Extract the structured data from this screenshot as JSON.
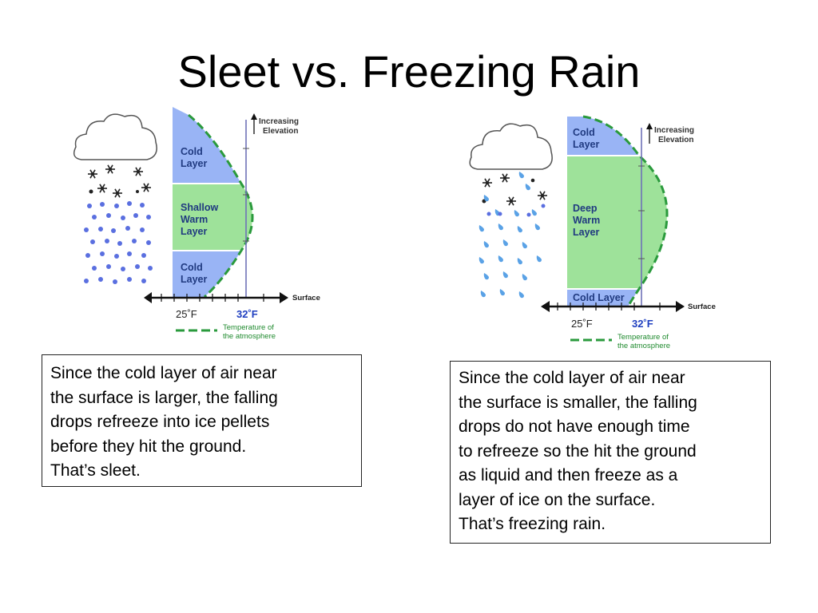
{
  "title": "Sleet vs. Freezing Rain",
  "colors": {
    "cold_layer": "#99b4f5",
    "warm_layer": "#9ee29a",
    "temperature_line": "#2a9a3c",
    "freezing_label": "#1f3fc0",
    "legend_text": "#1f8a2e",
    "layer_text": "#203a80",
    "pellet": "#5a6fe0",
    "raindrop": "#5aa2e6"
  },
  "sleet_diagram": {
    "top_layer": [
      "Cold",
      "Layer"
    ],
    "middle_layer": [
      "Shallow",
      "Warm",
      "Layer"
    ],
    "bottom_layer": [
      "Cold",
      "Layer"
    ],
    "elevation_label": [
      "Increasing",
      "Elevation"
    ],
    "surface_label": "Surface",
    "temp_cold": "25˚F",
    "temp_freezing": "32˚F",
    "legend_label": [
      "Temperature of",
      "the atmosphere"
    ]
  },
  "freezing_rain_diagram": {
    "top_layer": [
      "Cold",
      "Layer"
    ],
    "middle_layer": [
      "Deep",
      "Warm",
      "Layer"
    ],
    "bottom_layer": "Cold Layer",
    "elevation_label": [
      "Increasing",
      "Elevation"
    ],
    "surface_label": "Surface",
    "temp_cold": "25˚F",
    "temp_freezing": "32˚F",
    "legend_label": [
      "Temperature of",
      "the atmosphere"
    ]
  },
  "captions": {
    "sleet": [
      "Since the cold layer of air near",
      "the surface is larger, the falling",
      "drops refreeze into ice pellets",
      "before they hit the ground.",
      "That’s sleet."
    ],
    "freezing_rain": [
      "Since the cold layer of air near",
      "the surface is smaller, the falling",
      "drops do not have enough time",
      "to refreeze so the hit the ground",
      "as liquid and then freeze as a",
      "layer of ice on the surface.",
      "That’s freezing rain."
    ]
  }
}
